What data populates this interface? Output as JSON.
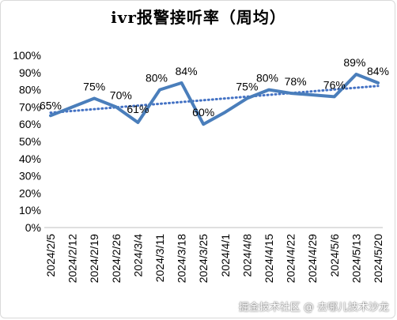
{
  "chart_data": {
    "type": "line",
    "title": "ivr报警接听率（周均）",
    "categories": [
      "2024/2/5",
      "2024/2/12",
      "2024/2/19",
      "2024/2/26",
      "2024/3/4",
      "2024/3/11",
      "2024/3/18",
      "2024/3/25",
      "2024/4/1",
      "2024/4/8",
      "2024/4/15",
      "2024/4/22",
      "2024/4/29",
      "2024/5/6",
      "2024/5/13",
      "2024/5/20"
    ],
    "series": [
      {
        "values": [
          65,
          70,
          75,
          70,
          61,
          80,
          84,
          60,
          67,
          75,
          80,
          78,
          77,
          76,
          89,
          84
        ],
        "labels": [
          "65%",
          null,
          "75%",
          "70%",
          "61%",
          "80%",
          "84%",
          "60%",
          null,
          "75%",
          "80%",
          "78%",
          null,
          "76%",
          "89%",
          "84%"
        ],
        "color": "#4a7ebb",
        "trendline_color": "#4472c4"
      }
    ],
    "trendline": "linear",
    "y_ticks": [
      "0%",
      "10%",
      "20%",
      "30%",
      "40%",
      "50%",
      "60%",
      "70%",
      "80%",
      "90%",
      "100%"
    ],
    "ylim": [
      0,
      100
    ],
    "grid": false
  },
  "watermark": "掘金技术社区 @ 去哪儿技术沙龙"
}
